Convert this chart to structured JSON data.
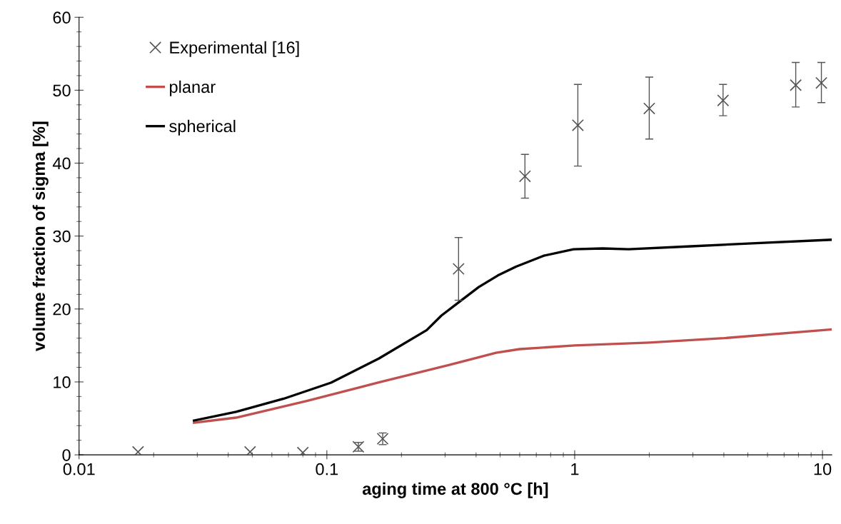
{
  "chart_data": {
    "type": "line",
    "xlabel": "aging time at 800 °C [h]",
    "ylabel": "volume fraction of sigma [%]",
    "log": "x",
    "xlim": [
      0.01,
      10.9
    ],
    "xticks": [
      0.01,
      0.1,
      1,
      10
    ],
    "ylim": [
      0,
      60
    ],
    "yticks": [
      0,
      10,
      20,
      30,
      40,
      50,
      60
    ],
    "grid": false,
    "legend": "top left",
    "series": [
      {
        "name": "Experimental [16]",
        "type": "scatter",
        "marker": "cross",
        "color": "#555555",
        "x": [
          0.0173,
          0.049,
          0.08,
          0.134,
          0.168,
          0.34,
          0.63,
          1.03,
          2.0,
          3.97,
          7.8,
          9.9
        ],
        "values": [
          0.4,
          0.4,
          0.3,
          1.1,
          2.2,
          25.5,
          38.2,
          45.2,
          47.5,
          48.6,
          50.7,
          51.0
        ],
        "errors": [
          null,
          null,
          null,
          0.6,
          0.8,
          [
            21.2,
            29.8
          ],
          [
            35.2,
            41.2
          ],
          [
            39.6,
            50.8
          ],
          [
            43.3,
            51.8
          ],
          [
            46.5,
            50.8
          ],
          [
            47.7,
            53.8
          ],
          [
            48.3,
            53.8
          ]
        ]
      },
      {
        "name": "planar",
        "color": "#c0504d",
        "x": [
          0.0291,
          0.043,
          0.083,
          0.161,
          0.31,
          0.482,
          0.6,
          1.0,
          2.0,
          4.0,
          10.9
        ],
        "values": [
          4.4,
          5.1,
          7.4,
          9.9,
          12.3,
          14.0,
          14.5,
          15.0,
          15.4,
          16.0,
          17.2
        ]
      },
      {
        "name": "spherical",
        "color": "#000000",
        "x": [
          0.0291,
          0.043,
          0.067,
          0.104,
          0.162,
          0.253,
          0.29,
          0.34,
          0.41,
          0.49,
          0.58,
          0.75,
          0.99,
          1.3,
          1.65,
          2.95,
          5.2,
          10.9
        ],
        "values": [
          4.7,
          5.9,
          7.7,
          9.9,
          13.2,
          17.1,
          19.1,
          20.9,
          23.0,
          24.6,
          25.8,
          27.3,
          28.2,
          28.3,
          28.2,
          28.6,
          29.0,
          29.5
        ]
      }
    ]
  }
}
